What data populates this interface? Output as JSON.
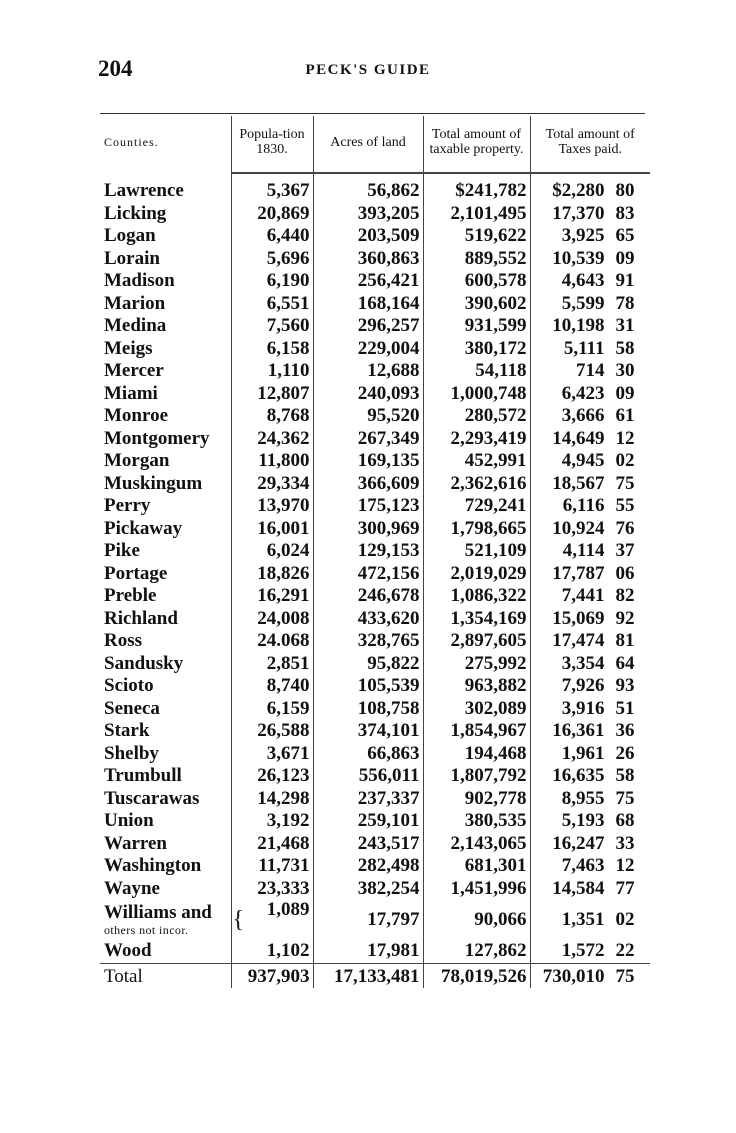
{
  "page_number": "204",
  "running_head": "PECK'S GUIDE",
  "headers": {
    "counties": "Counties.",
    "population": "Popula-tion 1830.",
    "acres": "Acres of land",
    "property": "Total amount of taxable property.",
    "taxes": "Total amount of Taxes paid."
  },
  "rows": [
    {
      "county": "Lawrence",
      "population": "5,367",
      "acres": "56,862",
      "property": "$241,782",
      "taxes": "$2,280",
      "cents": "80"
    },
    {
      "county": "Licking",
      "population": "20,869",
      "acres": "393,205",
      "property": "2,101,495",
      "taxes": "17,370",
      "cents": "83"
    },
    {
      "county": "Logan",
      "population": "6,440",
      "acres": "203,509",
      "property": "519,622",
      "taxes": "3,925",
      "cents": "65"
    },
    {
      "county": "Lorain",
      "population": "5,696",
      "acres": "360,863",
      "property": "889,552",
      "taxes": "10,539",
      "cents": "09"
    },
    {
      "county": "Madison",
      "population": "6,190",
      "acres": "256,421",
      "property": "600,578",
      "taxes": "4,643",
      "cents": "91"
    },
    {
      "county": "Marion",
      "population": "6,551",
      "acres": "168,164",
      "property": "390,602",
      "taxes": "5,599",
      "cents": "78"
    },
    {
      "county": "Medina",
      "population": "7,560",
      "acres": "296,257",
      "property": "931,599",
      "taxes": "10,198",
      "cents": "31"
    },
    {
      "county": "Meigs",
      "population": "6,158",
      "acres": "229,004",
      "property": "380,172",
      "taxes": "5,111",
      "cents": "58"
    },
    {
      "county": "Mercer",
      "population": "1,110",
      "acres": "12,688",
      "property": "54,118",
      "taxes": "714",
      "cents": "30"
    },
    {
      "county": "Miami",
      "population": "12,807",
      "acres": "240,093",
      "property": "1,000,748",
      "taxes": "6,423",
      "cents": "09"
    },
    {
      "county": "Monroe",
      "population": "8,768",
      "acres": "95,520",
      "property": "280,572",
      "taxes": "3,666",
      "cents": "61"
    },
    {
      "county": "Montgomery",
      "population": "24,362",
      "acres": "267,349",
      "property": "2,293,419",
      "taxes": "14,649",
      "cents": "12"
    },
    {
      "county": "Morgan",
      "population": "11,800",
      "acres": "169,135",
      "property": "452,991",
      "taxes": "4,945",
      "cents": "02"
    },
    {
      "county": "Muskingum",
      "population": "29,334",
      "acres": "366,609",
      "property": "2,362,616",
      "taxes": "18,567",
      "cents": "75"
    },
    {
      "county": "Perry",
      "population": "13,970",
      "acres": "175,123",
      "property": "729,241",
      "taxes": "6,116",
      "cents": "55"
    },
    {
      "county": "Pickaway",
      "population": "16,001",
      "acres": "300,969",
      "property": "1,798,665",
      "taxes": "10,924",
      "cents": "76"
    },
    {
      "county": "Pike",
      "population": "6,024",
      "acres": "129,153",
      "property": "521,109",
      "taxes": "4,114",
      "cents": "37"
    },
    {
      "county": "Portage",
      "population": "18,826",
      "acres": "472,156",
      "property": "2,019,029",
      "taxes": "17,787",
      "cents": "06"
    },
    {
      "county": "Preble",
      "population": "16,291",
      "acres": "246,678",
      "property": "1,086,322",
      "taxes": "7,441",
      "cents": "82"
    },
    {
      "county": "Richland",
      "population": "24,008",
      "acres": "433,620",
      "property": "1,354,169",
      "taxes": "15,069",
      "cents": "92"
    },
    {
      "county": "Ross",
      "population": "24.068",
      "acres": "328,765",
      "property": "2,897,605",
      "taxes": "17,474",
      "cents": "81"
    },
    {
      "county": "Sandusky",
      "population": "2,851",
      "acres": "95,822",
      "property": "275,992",
      "taxes": "3,354",
      "cents": "64"
    },
    {
      "county": "Scioto",
      "population": "8,740",
      "acres": "105,539",
      "property": "963,882",
      "taxes": "7,926",
      "cents": "93"
    },
    {
      "county": "Seneca",
      "population": "6,159",
      "acres": "108,758",
      "property": "302,089",
      "taxes": "3,916",
      "cents": "51"
    },
    {
      "county": "Stark",
      "population": "26,588",
      "acres": "374,101",
      "property": "1,854,967",
      "taxes": "16,361",
      "cents": "36"
    },
    {
      "county": "Shelby",
      "population": "3,671",
      "acres": "66,863",
      "property": "194,468",
      "taxes": "1,961",
      "cents": "26"
    },
    {
      "county": "Trumbull",
      "population": "26,123",
      "acres": "556,011",
      "property": "1,807,792",
      "taxes": "16,635",
      "cents": "58"
    },
    {
      "county": "Tuscarawas",
      "population": "14,298",
      "acres": "237,337",
      "property": "902,778",
      "taxes": "8,955",
      "cents": "75"
    },
    {
      "county": "Union",
      "population": "3,192",
      "acres": "259,101",
      "property": "380,535",
      "taxes": "5,193",
      "cents": "68"
    },
    {
      "county": "Warren",
      "population": "21,468",
      "acres": "243,517",
      "property": "2,143,065",
      "taxes": "16,247",
      "cents": "33"
    },
    {
      "county": "Washington",
      "population": "11,731",
      "acres": "282,498",
      "property": "681,301",
      "taxes": "7,463",
      "cents": "12"
    },
    {
      "county": "Wayne",
      "population": "23,333",
      "acres": "382,254",
      "property": "1,451,996",
      "taxes": "14,584",
      "cents": "77"
    },
    {
      "county": "Williams and",
      "county_sub": "others not incor.",
      "population": "1,089",
      "acres": "17,797",
      "property": "90,066",
      "taxes": "1,351",
      "cents": "02"
    },
    {
      "county": "Wood",
      "population": "1,102",
      "acres": "17,981",
      "property": "127,862",
      "taxes": "1,572",
      "cents": "22"
    }
  ],
  "total": {
    "label": "Total",
    "population": "937,903",
    "acres": "17,133,481",
    "property": "78,019,526",
    "taxes": "730,010",
    "cents": "75"
  }
}
